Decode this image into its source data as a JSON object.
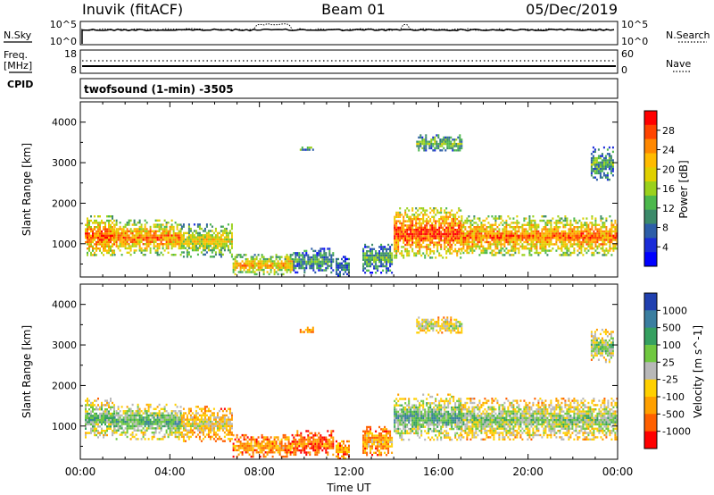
{
  "header": {
    "station": "Inuvik (fitACF)",
    "beam": "Beam 01",
    "date": "05/Dec/2019"
  },
  "status_panel": {
    "nsky_label": "N.Sky",
    "nsearch_label": "N.Search",
    "freq_label_1": "Freq.",
    "freq_label_2": "[MHz]",
    "nave_label": "Nave",
    "cpid_label": "CPID",
    "noise_ticks_left": [
      "10^5",
      "10^0"
    ],
    "noise_ticks_right": [
      "10^5",
      "10^0"
    ],
    "freq_ticks_left": [
      "18",
      "8"
    ],
    "nave_ticks_right": [
      "60",
      "0"
    ],
    "cpid_text": "twofsound (1-min) -3505"
  },
  "chart_data": [
    {
      "type": "heatmap",
      "name": "power",
      "xlabel": "",
      "ylabel": "Slant Range [km]",
      "xlim": [
        0,
        24
      ],
      "ylim": [
        180,
        4500
      ],
      "y_ticks": [
        "1000",
        "2000",
        "3000",
        "4000"
      ],
      "colorbar_label": "Power [dB]",
      "colorbar_ticks": [
        "28",
        "24",
        "20",
        "16",
        "12",
        "8",
        "4"
      ],
      "colorbar_colors": [
        "#ff0000",
        "#ff4400",
        "#ff8800",
        "#ffbb00",
        "#e0d000",
        "#9ad11c",
        "#4cb84c",
        "#3c8a6a",
        "#2d5ea8",
        "#1a2cd8",
        "#0000ff"
      ],
      "regions": [
        {
          "t0": 0.2,
          "t1": 1.5,
          "r0": 700,
          "r1": 1700,
          "level": 0.85
        },
        {
          "t0": 1.5,
          "t1": 4.5,
          "r0": 750,
          "r1": 1600,
          "level": 0.8
        },
        {
          "t0": 4.5,
          "t1": 6.8,
          "r0": 700,
          "r1": 1500,
          "level": 0.6
        },
        {
          "t0": 6.8,
          "t1": 9.5,
          "r0": 250,
          "r1": 750,
          "level": 0.7
        },
        {
          "t0": 9.5,
          "t1": 11.3,
          "r0": 300,
          "r1": 900,
          "level": 0.35
        },
        {
          "t0": 11.4,
          "t1": 12.0,
          "r0": 200,
          "r1": 700,
          "level": 0.3
        },
        {
          "t0": 14.0,
          "t1": 17.0,
          "r0": 650,
          "r1": 1900,
          "level": 0.9
        },
        {
          "t0": 17.0,
          "t1": 24.0,
          "r0": 700,
          "r1": 1700,
          "level": 0.8
        },
        {
          "t0": 12.6,
          "t1": 13.9,
          "r0": 300,
          "r1": 1000,
          "level": 0.4
        },
        {
          "t0": 15.0,
          "t1": 17.0,
          "r0": 3300,
          "r1": 3700,
          "level": 0.45
        },
        {
          "t0": 9.8,
          "t1": 10.4,
          "r0": 3300,
          "r1": 3450,
          "level": 0.4
        },
        {
          "t0": 22.8,
          "t1": 23.8,
          "r0": 2600,
          "r1": 3400,
          "level": 0.4
        }
      ]
    },
    {
      "type": "heatmap",
      "name": "velocity",
      "xlabel": "Time UT",
      "ylabel": "Slant Range [km]",
      "xlim": [
        0,
        24
      ],
      "ylim": [
        180,
        4500
      ],
      "x_ticks": [
        "00:00",
        "04:00",
        "08:00",
        "12:00",
        "16:00",
        "20:00",
        "00:00"
      ],
      "y_ticks": [
        "1000",
        "2000",
        "3000",
        "4000"
      ],
      "colorbar_label": "Velocity [m s^-1]",
      "colorbar_ticks": [
        "1000",
        "500",
        "100",
        "25",
        "-25",
        "-100",
        "-500",
        "-1000"
      ],
      "colorbar_colors": [
        "#2040b0",
        "#3a7ea0",
        "#35a060",
        "#70c840",
        "#b8b8b8",
        "#ffd000",
        "#ffa000",
        "#ff6000",
        "#ff0000"
      ],
      "regions": [
        {
          "t0": 0.2,
          "t1": 1.5,
          "r0": 700,
          "r1": 1700,
          "level": 0.65
        },
        {
          "t0": 1.5,
          "t1": 4.5,
          "r0": 700,
          "r1": 1550,
          "level": 0.7
        },
        {
          "t0": 4.5,
          "t1": 6.8,
          "r0": 650,
          "r1": 1500,
          "level": 0.45
        },
        {
          "t0": 6.8,
          "t1": 9.5,
          "r0": 250,
          "r1": 800,
          "level": 0.3
        },
        {
          "t0": 9.5,
          "t1": 11.3,
          "r0": 300,
          "r1": 900,
          "level": 0.2
        },
        {
          "t0": 11.4,
          "t1": 12.0,
          "r0": 200,
          "r1": 700,
          "level": 0.3
        },
        {
          "t0": 14.0,
          "t1": 17.0,
          "r0": 650,
          "r1": 1800,
          "level": 0.7
        },
        {
          "t0": 17.0,
          "t1": 24.0,
          "r0": 650,
          "r1": 1700,
          "level": 0.6
        },
        {
          "t0": 12.6,
          "t1": 13.9,
          "r0": 300,
          "r1": 1000,
          "level": 0.35
        },
        {
          "t0": 15.0,
          "t1": 17.0,
          "r0": 3300,
          "r1": 3700,
          "level": 0.55
        },
        {
          "t0": 9.8,
          "t1": 10.4,
          "r0": 3300,
          "r1": 3450,
          "level": 0.3
        },
        {
          "t0": 22.8,
          "t1": 23.8,
          "r0": 2600,
          "r1": 3400,
          "level": 0.6
        }
      ]
    }
  ]
}
